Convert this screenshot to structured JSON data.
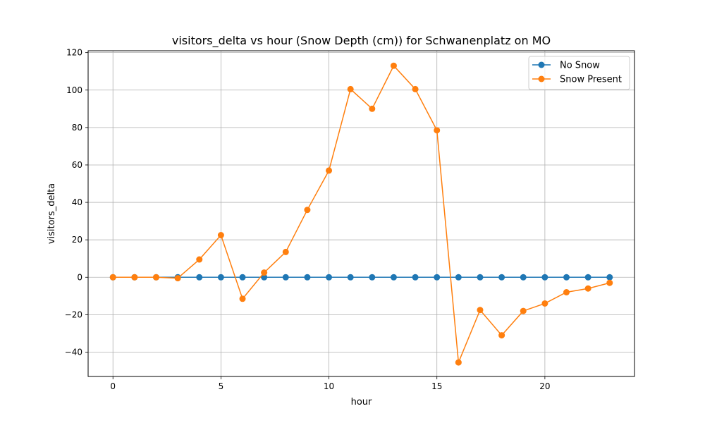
{
  "chart_data": {
    "type": "line",
    "title": "visitors_delta vs hour (Snow Depth (cm)) for Schwanenplatz on MO",
    "xlabel": "hour",
    "ylabel": "visitors_delta",
    "xlim": [
      -1.15,
      24.15
    ],
    "ylim": [
      -53,
      121
    ],
    "xticks": [
      0,
      5,
      10,
      15,
      20
    ],
    "yticks": [
      -40,
      -20,
      0,
      20,
      40,
      60,
      80,
      100,
      120
    ],
    "grid": true,
    "legend_position": "top-right",
    "x": [
      0,
      1,
      2,
      3,
      4,
      5,
      6,
      7,
      8,
      9,
      10,
      11,
      12,
      13,
      14,
      15,
      16,
      17,
      18,
      19,
      20,
      21,
      22,
      23
    ],
    "series": [
      {
        "name": "No Snow",
        "color": "#1f77b4",
        "values": [
          0,
          0,
          0,
          0,
          0,
          0,
          0,
          0,
          0,
          0,
          0,
          0,
          0,
          0,
          0,
          0,
          0,
          0,
          0,
          0,
          0,
          0,
          0,
          0
        ]
      },
      {
        "name": "Snow Present",
        "color": "#ff7f0e",
        "values": [
          0,
          0,
          0,
          -0.5,
          9.5,
          22.5,
          -11.5,
          2.5,
          13.5,
          36,
          57,
          100.5,
          90,
          113,
          100.5,
          78.5,
          -45.5,
          -17.5,
          -31,
          -18,
          -14,
          -8,
          -6,
          -3
        ]
      }
    ]
  }
}
